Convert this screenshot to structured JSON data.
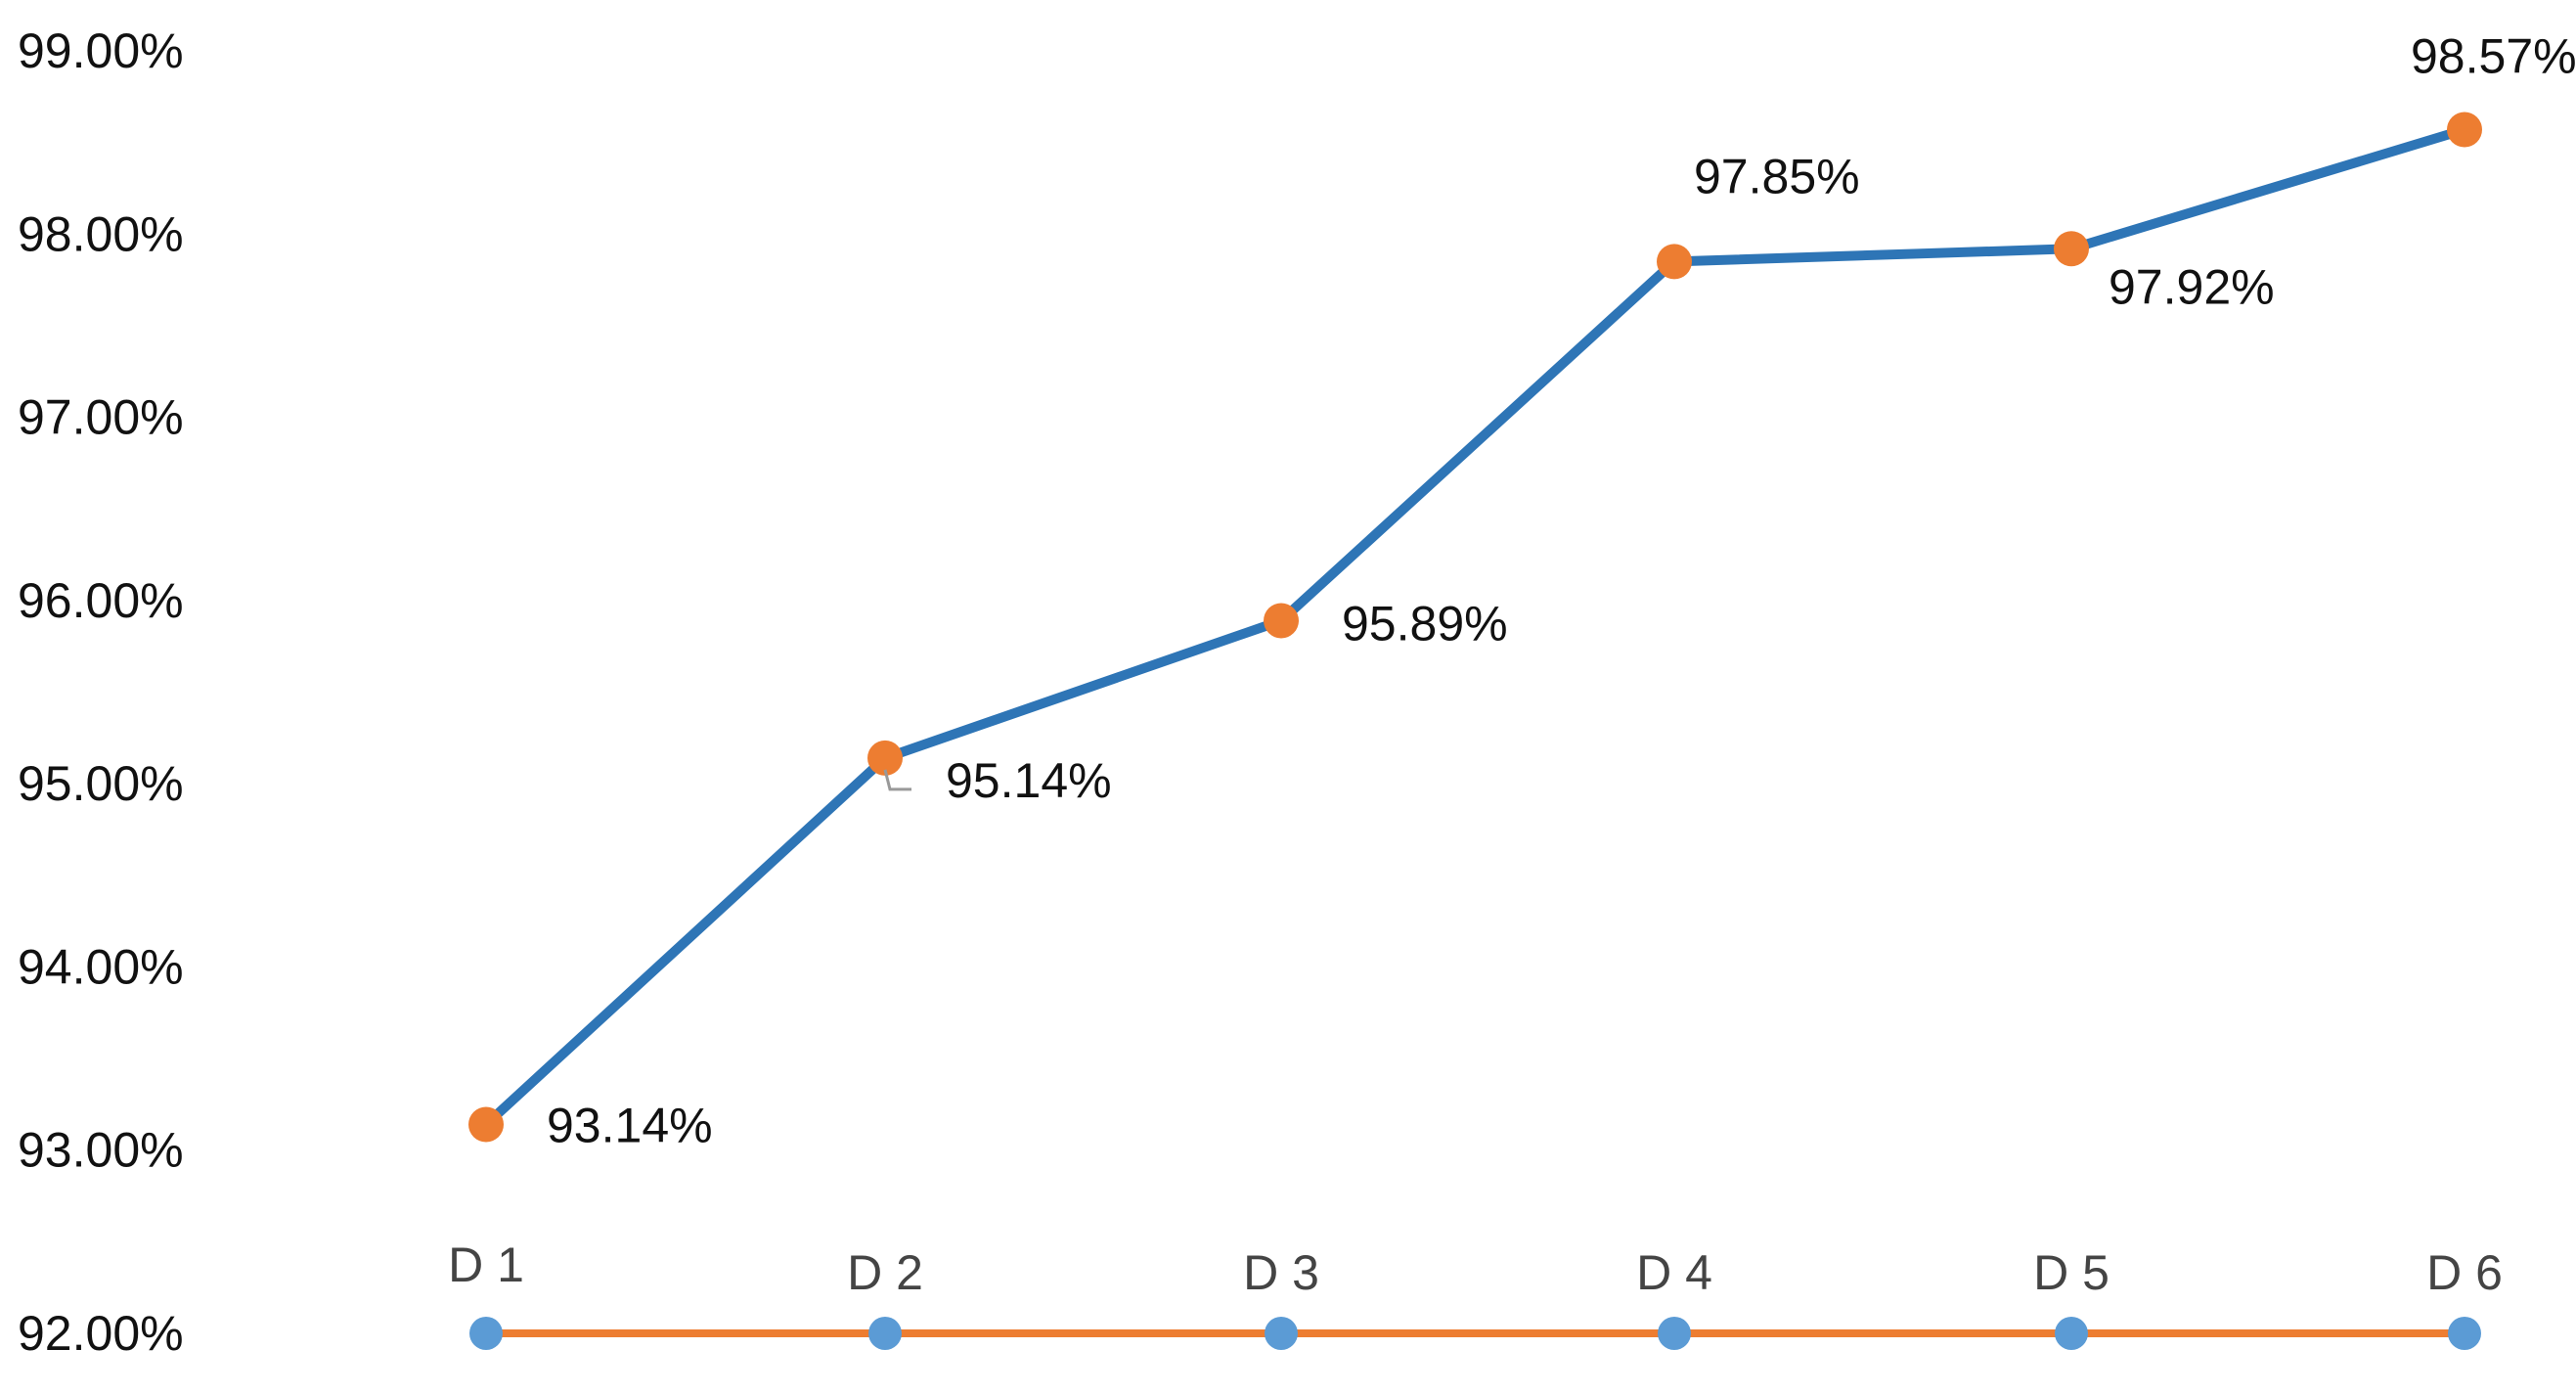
{
  "chart_data": {
    "type": "line",
    "title": "",
    "xlabel": "",
    "ylabel": "",
    "categories": [
      "D 1",
      "D 2",
      "D 3",
      "D 4",
      "D 5",
      "D 6"
    ],
    "ylim": [
      92,
      99
    ],
    "yticks": [
      "92.00%",
      "93.00%",
      "94.00%",
      "95.00%",
      "96.00%",
      "97.00%",
      "98.00%",
      "99.00%"
    ],
    "grid": false,
    "legend": "none",
    "series": [
      {
        "values": [
          93.14,
          95.14,
          95.89,
          97.85,
          97.92,
          98.57
        ],
        "labels": [
          "93.14%",
          "95.14%",
          "95.89%",
          "97.85%",
          "97.92%",
          "98.57%"
        ],
        "line_color": "#2E75B6",
        "marker_color": "#ED7D31"
      }
    ],
    "baseline": {
      "line_color": "#ED7D31",
      "marker_color": "#5B9BD5"
    }
  }
}
